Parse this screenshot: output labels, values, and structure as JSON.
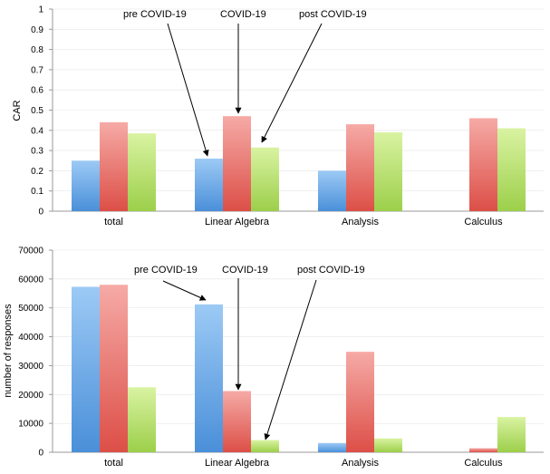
{
  "colors": {
    "pre": [
      "#9ccaf5",
      "#4a8fd9"
    ],
    "covid": [
      "#f6aaa6",
      "#dc4f47"
    ],
    "post": [
      "#d9f3a2",
      "#9ccf4a"
    ]
  },
  "chart_data": [
    {
      "type": "bar",
      "ylabel": "CAR",
      "ylim": [
        0,
        1
      ],
      "yticks": [
        "0",
        "0.1",
        "0.2",
        "0.3",
        "0.4",
        "0.5",
        "0.6",
        "0.7",
        "0.8",
        "0.9",
        "1"
      ],
      "categories": [
        "total",
        "Linear Algebra",
        "Analysis",
        "Calculus"
      ],
      "series": [
        {
          "name": "pre COVID-19",
          "values": [
            0.25,
            0.26,
            0.2,
            null
          ]
        },
        {
          "name": "COVID-19",
          "values": [
            0.44,
            0.47,
            0.43,
            0.46
          ]
        },
        {
          "name": "post COVID-19",
          "values": [
            0.385,
            0.315,
            0.39,
            0.41
          ]
        }
      ],
      "annotations": [
        "pre COVID-19",
        "COVID-19",
        "post COVID-19"
      ]
    },
    {
      "type": "bar",
      "ylabel": "number of responses",
      "ylim": [
        0,
        70000
      ],
      "yticks": [
        "0",
        "10000",
        "20000",
        "30000",
        "40000",
        "50000",
        "60000",
        "70000"
      ],
      "categories": [
        "total",
        "Linear Algebra",
        "Analysis",
        "Calculus"
      ],
      "series": [
        {
          "name": "pre COVID-19",
          "values": [
            57300,
            51200,
            3200,
            null
          ]
        },
        {
          "name": "COVID-19",
          "values": [
            58000,
            21200,
            34800,
            1400
          ]
        },
        {
          "name": "post COVID-19",
          "values": [
            22500,
            4200,
            4800,
            12200
          ]
        }
      ],
      "annotations": [
        "pre COVID-19",
        "COVID-19",
        "post COVID-19"
      ]
    }
  ]
}
